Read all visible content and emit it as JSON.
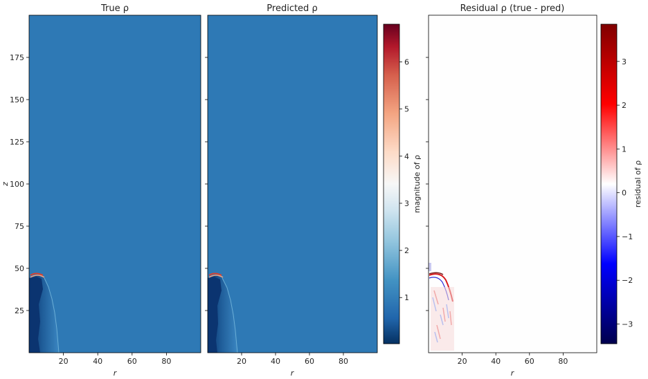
{
  "figure": {
    "panels": [
      {
        "id": "true",
        "title": "True ρ"
      },
      {
        "id": "pred",
        "title": "Predicted ρ"
      },
      {
        "id": "resid",
        "title": "Residual ρ (true - pred)"
      }
    ],
    "colorbars": [
      {
        "id": "magnitude",
        "label": "magnitude of ρ"
      },
      {
        "id": "residual",
        "label": "residual of ρ"
      }
    ]
  },
  "colors": {
    "field_background": "#2e79b5",
    "residual_background": "#fefefe",
    "jet_dark": "#08306b",
    "jet_mid": "#2b6aa8",
    "shock_red": "#d9412f",
    "shock_orange": "#f4a582"
  },
  "chart_data": [
    {
      "type": "heatmap",
      "title": "True ρ",
      "xlabel": "r",
      "ylabel": "z",
      "xlim": [
        0,
        100
      ],
      "ylim": [
        0,
        200
      ],
      "xticks": [
        20,
        40,
        60,
        80
      ],
      "yticks": [
        25,
        50,
        75,
        100,
        125,
        150,
        175
      ],
      "colormap": "RdBu_r",
      "background_value": 0.5,
      "features": [
        {
          "name": "jet-body",
          "r_range": [
            0,
            17
          ],
          "z_range": [
            0,
            45
          ]
        },
        {
          "name": "jet-head-shock",
          "r_range": [
            0,
            8
          ],
          "z_range": [
            44,
            47
          ]
        }
      ]
    },
    {
      "type": "heatmap",
      "title": "Predicted ρ",
      "xlabel": "r",
      "ylabel": "",
      "xlim": [
        0,
        100
      ],
      "ylim": [
        0,
        200
      ],
      "xticks": [
        20,
        40,
        60,
        80
      ],
      "colormap": "RdBu_r",
      "background_value": 0.5,
      "colorbar": {
        "label": "magnitude of ρ",
        "range": [
          0.02,
          6.8
        ],
        "ticks": [
          1,
          2,
          3,
          4,
          5,
          6
        ]
      }
    },
    {
      "type": "heatmap",
      "title": "Residual ρ (true - pred)",
      "xlabel": "r",
      "ylabel": "",
      "xlim": [
        0,
        100
      ],
      "ylim": [
        0,
        200
      ],
      "xticks": [
        20,
        40,
        60,
        80
      ],
      "colormap": "seismic",
      "background_value": 0,
      "colorbar": {
        "label": "residual of ρ",
        "range": [
          -3.45,
          3.85
        ],
        "ticks": [
          -3,
          -2,
          -1,
          0,
          1,
          2,
          3
        ]
      }
    }
  ]
}
